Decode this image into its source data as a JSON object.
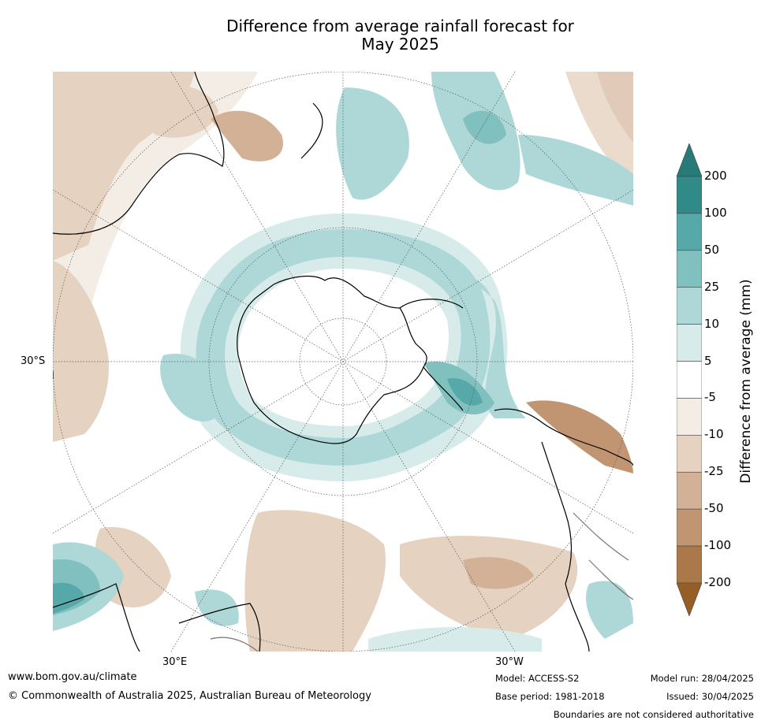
{
  "title_line1": "Difference from average rainfall forecast for",
  "title_line2": "May 2025",
  "labels": {
    "lat": "30°S",
    "lon_east": "30°E",
    "lon_west": "30°W"
  },
  "colorbar": {
    "title": "Difference from average (mm)",
    "ticks": [
      "200",
      "100",
      "50",
      "25",
      "10",
      "5",
      "-5",
      "-10",
      "-25",
      "-50",
      "-100",
      "-200"
    ],
    "bands": [
      "#2f8a88",
      "#56a9a8",
      "#80c0bf",
      "#add8d7",
      "#d7ebea",
      "#ffffff",
      "#f3ede6",
      "#e5d2c1",
      "#d3b197",
      "#c19572",
      "#ab7849"
    ],
    "arrow_top": "#287a78",
    "arrow_bottom": "#955e27"
  },
  "footer": {
    "url": "www.bom.gov.au/climate",
    "copyright": "© Commonwealth of Australia 2025, Australian Bureau of Meteorology",
    "model": "Model: ACCESS-S2",
    "base_period": "Base period: 1981-2018",
    "model_run": "Model run: 28/04/2025",
    "issued": "Issued: 30/04/2025",
    "disclaimer": "Boundaries are not considered authoritative"
  }
}
